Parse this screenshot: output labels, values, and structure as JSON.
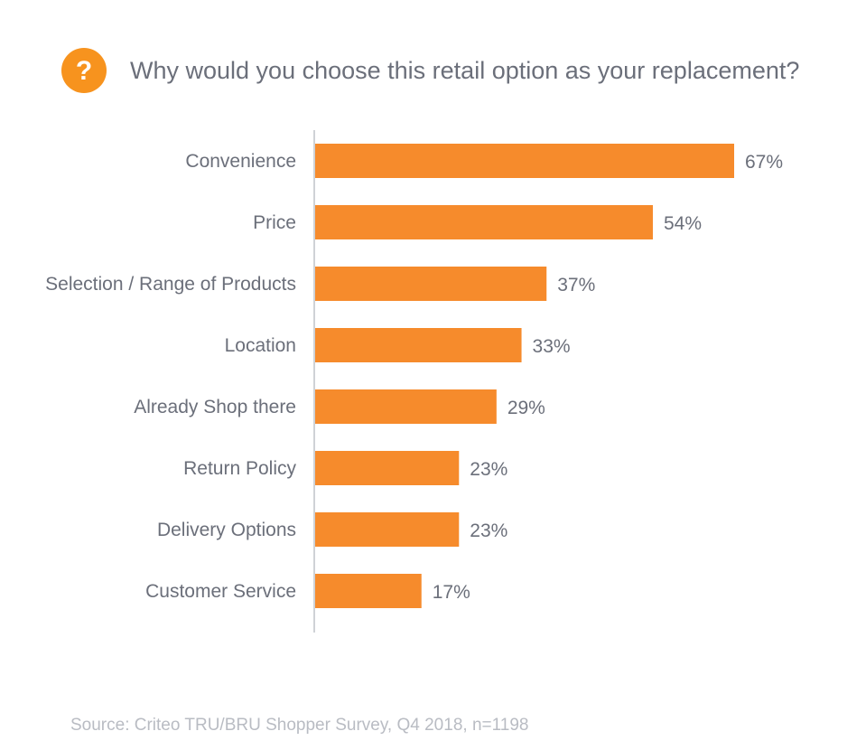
{
  "title": "Why would you choose this retail option as your replacement?",
  "source": "Source: Criteo TRU/BRU Shopper Survey, Q4 2018, n=1198",
  "icons": {
    "header_icon": "question-mark-icon"
  },
  "colors": {
    "bar": "#f68b2c",
    "badge": "#f7931e",
    "text": "#6b6f7a",
    "axis": "#cfd2d6",
    "source": "#b9bcc3"
  },
  "chart_data": {
    "type": "bar",
    "orientation": "horizontal",
    "title": "Why would you choose this retail option as your replacement?",
    "categories": [
      "Convenience",
      "Price",
      "Selection / Range of Products",
      "Location",
      "Already Shop there",
      "Return Policy",
      "Delivery Options",
      "Customer Service"
    ],
    "values": [
      67,
      54,
      37,
      33,
      29,
      23,
      23,
      17
    ],
    "value_labels": [
      "67%",
      "54%",
      "37%",
      "33%",
      "29%",
      "23%",
      "23%",
      "17%"
    ],
    "unit": "%",
    "xlim": [
      0,
      67
    ],
    "xlabel": "",
    "ylabel": "",
    "grid": false,
    "legend": "none"
  }
}
